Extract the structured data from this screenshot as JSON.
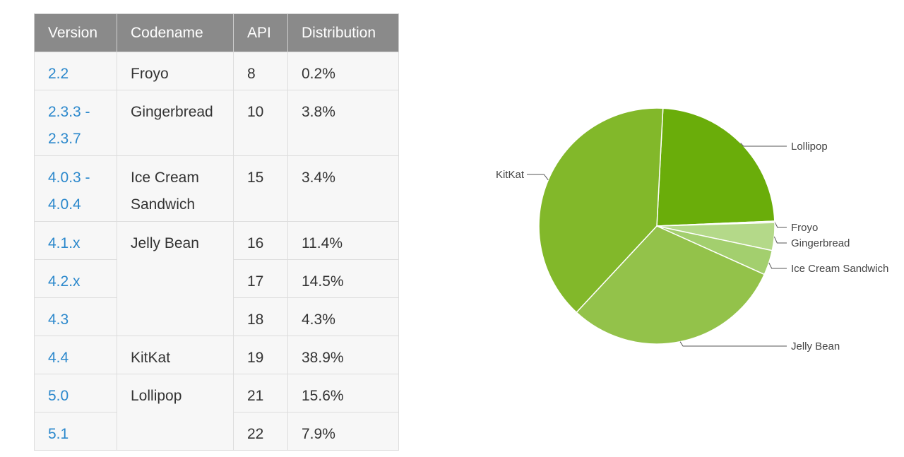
{
  "table": {
    "headers": [
      "Version",
      "Codename",
      "API",
      "Distribution"
    ],
    "rows": [
      {
        "version": "2.2",
        "codename": "Froyo",
        "api": "8",
        "dist": "0.2%"
      },
      {
        "version": "2.3.3 -\n2.3.7",
        "codename": "Gingerbread",
        "api": "10",
        "dist": "3.8%"
      },
      {
        "version": "4.0.3 -\n4.0.4",
        "codename": "Ice Cream\nSandwich",
        "api": "15",
        "dist": "3.4%"
      },
      {
        "version": "4.1.x",
        "codename": "Jelly Bean",
        "api": "16",
        "dist": "11.4%"
      },
      {
        "version": "4.2.x",
        "codename": "",
        "api": "17",
        "dist": "14.5%"
      },
      {
        "version": "4.3",
        "codename": "",
        "api": "18",
        "dist": "4.3%"
      },
      {
        "version": "4.4",
        "codename": "KitKat",
        "api": "19",
        "dist": "38.9%"
      },
      {
        "version": "5.0",
        "codename": "Lollipop",
        "api": "21",
        "dist": "15.6%"
      },
      {
        "version": "5.1",
        "codename": "",
        "api": "22",
        "dist": "7.9%"
      }
    ]
  },
  "chart_data": {
    "type": "pie",
    "start_angle_deg": -87,
    "direction": "clockwise",
    "slices": [
      {
        "label": "Lollipop",
        "value": 23.5,
        "color": "#6aad0a"
      },
      {
        "label": "Froyo",
        "value": 0.2,
        "color": "#d6ebb3"
      },
      {
        "label": "Gingerbread",
        "value": 3.8,
        "color": "#b4d989"
      },
      {
        "label": "Ice Cream Sandwich",
        "value": 3.4,
        "color": "#a3cf6e"
      },
      {
        "label": "Jelly Bean",
        "value": 30.2,
        "color": "#93c24a"
      },
      {
        "label": "KitKat",
        "value": 38.9,
        "color": "#82b82a"
      }
    ]
  }
}
